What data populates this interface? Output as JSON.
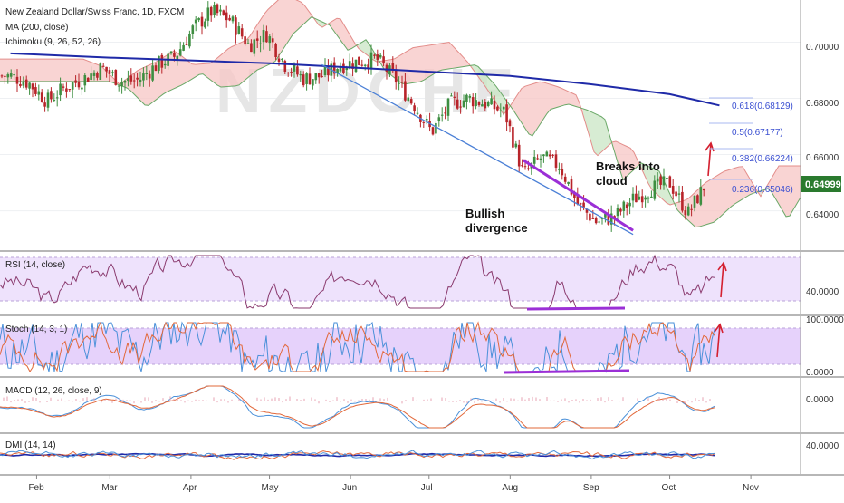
{
  "chart_data": {
    "type": "line",
    "title": "New Zealand Dollar/Swiss Franc, 1D, FXCM",
    "indicators": [
      "MA (200, close)",
      "Ichimoku (9, 26, 52, 26)"
    ],
    "watermark": "NZDCHF",
    "x_ticks": [
      "Feb",
      "Mar",
      "Apr",
      "May",
      "Jun",
      "Jul",
      "Aug",
      "Sep",
      "Oct",
      "Nov"
    ],
    "y_ticks": [
      "0.70000",
      "0.68000",
      "0.66000",
      "0.64000"
    ],
    "ylim": [
      0.626,
      0.715
    ],
    "last_price": "0.64999",
    "series": [
      {
        "name": "Close",
        "x": [
          "Jan 22",
          "Jan 29",
          "Feb 5",
          "Feb 12",
          "Feb 19",
          "Feb 26",
          "Mar 5",
          "Mar 12",
          "Mar 19",
          "Mar 26",
          "Apr 2",
          "Apr 9",
          "Apr 16",
          "Apr 23",
          "Apr 30",
          "May 7",
          "May 14",
          "May 21",
          "May 28",
          "Jun 4",
          "Jun 11",
          "Jun 18",
          "Jun 25",
          "Jul 2",
          "Jul 9",
          "Jul 16",
          "Jul 23",
          "Jul 30",
          "Aug 6",
          "Aug 13",
          "Aug 20",
          "Aug 27",
          "Sep 3",
          "Sep 10",
          "Sep 17",
          "Sep 24",
          "Oct 1",
          "Oct 8",
          "Oct 15"
        ],
        "values": [
          0.688,
          0.6855,
          0.679,
          0.684,
          0.687,
          0.691,
          0.686,
          0.6865,
          0.692,
          0.695,
          0.705,
          0.711,
          0.708,
          0.699,
          0.703,
          0.692,
          0.687,
          0.688,
          0.692,
          0.693,
          0.694,
          0.687,
          0.678,
          0.668,
          0.678,
          0.68,
          0.678,
          0.675,
          0.653,
          0.659,
          0.656,
          0.642,
          0.636,
          0.638,
          0.644,
          0.648,
          0.65,
          0.639,
          0.65
        ]
      },
      {
        "name": "MA (200, close)",
        "x": [
          "Jan 22",
          "Mar 1",
          "Apr 1",
          "May 1",
          "Jun 1",
          "Jul 1",
          "Aug 1",
          "Sep 1",
          "Oct 1",
          "Oct 20"
        ],
        "values": [
          0.696,
          0.6945,
          0.6935,
          0.6925,
          0.691,
          0.6895,
          0.688,
          0.685,
          0.6815,
          0.6775
        ]
      }
    ],
    "fibonacci": [
      "0.618(0.68129)",
      "0.5(0.67177)",
      "0.382(0.66224)",
      "0.236(0.65046)"
    ],
    "annotations": [
      "Breaks into cloud",
      "Bullish divergence"
    ],
    "panes": [
      {
        "name": "RSI (14, close)",
        "ticks": [
          "40.0000"
        ]
      },
      {
        "name": "Stoch (14, 3, 1)",
        "ticks": [
          "100.0000",
          "0.0000"
        ]
      },
      {
        "name": "MACD (12, 26, close, 9)",
        "ticks": [
          "0.0000"
        ]
      },
      {
        "name": "DMI (14, 14)",
        "ticks": [
          "40.0000"
        ]
      }
    ],
    "colors": {
      "up": "#3e8e41",
      "down": "#b8242a",
      "ma": "#1f2aa8",
      "cloud_bear": "#f7c6c4",
      "cloud_bull": "#c9e6c4",
      "trendline": "#4a7fd6",
      "divergence": "#9b2fd6",
      "arrow": "#d42030",
      "fib": "#3a4fd1",
      "price_badge": "#2a7a2e",
      "pane_bg": "#e9d9fb"
    }
  }
}
